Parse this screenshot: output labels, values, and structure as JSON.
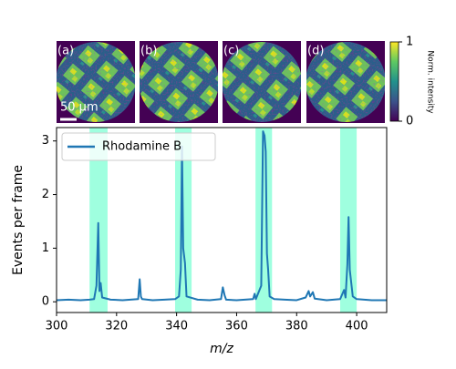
{
  "chart_data": {
    "type": "line",
    "x_label": "m/z",
    "y_label": "Events per frame",
    "xlim": [
      300,
      410
    ],
    "xticks": [
      300,
      320,
      340,
      360,
      380,
      400
    ],
    "ylim": [
      -0.2,
      3.25
    ],
    "yticks": [
      0,
      1,
      2,
      3
    ],
    "legend": "upper left",
    "band_color": "#7fffd4",
    "bands": [
      [
        311,
        317
      ],
      [
        339.5,
        345
      ],
      [
        366.3,
        371.8
      ],
      [
        394.5,
        400
      ]
    ],
    "series": [
      {
        "name": "Rhodamine B",
        "color": "#1f77b4",
        "x": [
          300,
          304,
          308,
          311,
          312.5,
          313.3,
          313.9,
          314.3,
          314.7,
          315.2,
          318,
          322,
          327.2,
          327.7,
          328.1,
          328.5,
          332,
          336,
          339.5,
          340.8,
          341.4,
          341.8,
          342.2,
          342.8,
          343.3,
          347,
          351,
          354.8,
          355.4,
          356,
          356.5,
          360,
          365.5,
          366,
          366.4,
          368.2,
          368.8,
          369.3,
          369.7,
          370.1,
          370.5,
          371,
          372.5,
          376,
          380,
          383,
          384,
          384.5,
          385.4,
          386,
          390,
          394.5,
          395.8,
          396.3,
          396.9,
          397.3,
          397.7,
          398.1,
          398.7,
          400,
          405,
          410
        ],
        "values": [
          0.03,
          0.04,
          0.03,
          0.04,
          0.05,
          0.3,
          1.47,
          0.2,
          0.35,
          0.08,
          0.04,
          0.03,
          0.05,
          0.42,
          0.1,
          0.05,
          0.03,
          0.04,
          0.05,
          0.1,
          0.6,
          2.9,
          1.0,
          0.72,
          0.1,
          0.04,
          0.03,
          0.05,
          0.27,
          0.12,
          0.04,
          0.03,
          0.05,
          0.15,
          0.05,
          0.3,
          3.18,
          3.1,
          2.8,
          0.9,
          0.6,
          0.1,
          0.05,
          0.04,
          0.03,
          0.08,
          0.2,
          0.1,
          0.18,
          0.06,
          0.03,
          0.05,
          0.22,
          0.08,
          0.7,
          1.58,
          0.6,
          0.4,
          0.1,
          0.05,
          0.03,
          0.03
        ]
      }
    ],
    "insets": [
      "(a)",
      "(b)",
      "(c)",
      "(d)"
    ],
    "scale_bar": "50 μm",
    "colorbar": {
      "label": "Norm. intensity",
      "ticks": [
        0,
        1
      ]
    }
  }
}
